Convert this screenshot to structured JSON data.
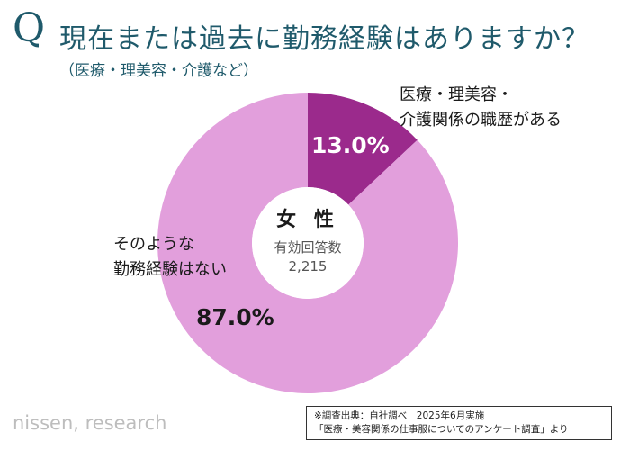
{
  "header": {
    "q_mark": "Q",
    "title": "現在または過去に勤務経験はありますか？",
    "subtitle": "（医療・理美容・介護など）"
  },
  "chart_data": {
    "type": "pie",
    "donut": true,
    "center": {
      "title": "女 性",
      "line1": "有効回答数",
      "line2": "2,215"
    },
    "slices": [
      {
        "label_line1": "医療・理美容・",
        "label_line2": "介護関係の職歴がある",
        "value": 13.0,
        "pct_label": "13.0%",
        "color": "#9b2a8c"
      },
      {
        "label_line1": "そのような",
        "label_line2": "勤務経験はない",
        "value": 87.0,
        "pct_label": "87.0%",
        "color": "#e29fdc"
      }
    ]
  },
  "footer": {
    "logo": "nissen, research",
    "source_line1": "※調査出典：自社調べ　2025年6月実施",
    "source_line2": "「医療・美容関係の仕事服についてのアンケート調査」より"
  }
}
